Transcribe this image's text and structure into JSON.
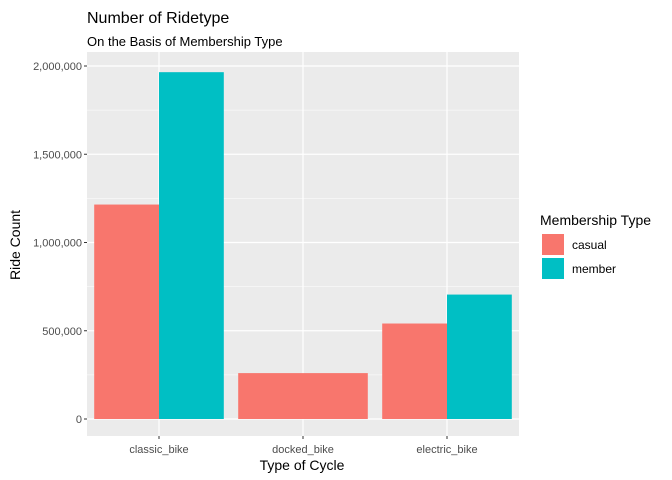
{
  "chart_data": {
    "type": "bar",
    "title": "Number of Ridetype",
    "subtitle": "On the Basis of Membership Type",
    "xlabel": "Type of Cycle",
    "ylabel": "Ride Count",
    "categories": [
      "classic_bike",
      "docked_bike",
      "electric_bike"
    ],
    "series": [
      {
        "name": "casual",
        "color": "#F8766D",
        "values": [
          1215000,
          260000,
          541000
        ]
      },
      {
        "name": "member",
        "color": "#00BFC4",
        "values": [
          1965000,
          null,
          705000
        ]
      }
    ],
    "ylim": [
      0,
      2000000
    ],
    "yticks": [
      0,
      500000,
      1000000,
      1500000,
      2000000
    ],
    "ytick_labels": [
      "0",
      "500,000",
      "1,000,000",
      "1,500,000",
      "2,000,000"
    ],
    "legend": {
      "title": "Membership Type",
      "position": "right"
    },
    "grid": true,
    "panel_background": "#EBEBEB"
  }
}
